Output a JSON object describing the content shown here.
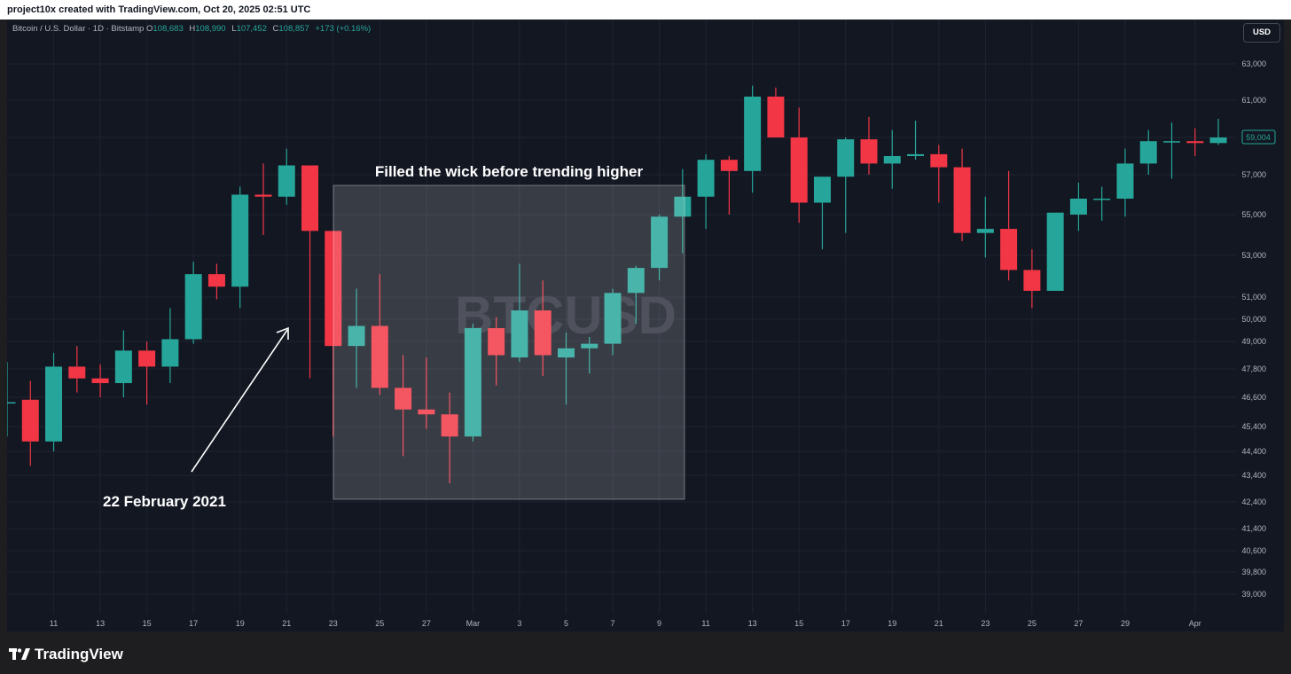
{
  "header": {
    "credit": "project10x created with TradingView.com, Oct 20, 2025 02:51 UTC"
  },
  "legend": {
    "symbol": "Bitcoin / U.S. Dollar · 1D · Bitstamp",
    "open_key": "O",
    "open": "108,683",
    "high_key": "H",
    "high": "108,990",
    "low_key": "L",
    "low": "107,452",
    "close_key": "C",
    "close": "108,857",
    "change": "+173 (+0.16%)"
  },
  "currency_button": "USD",
  "watermark": "BTCUSD",
  "annotations": {
    "box_label": "Filled the wick before trending higher",
    "arrow_label": "22 February 2021"
  },
  "price_label": "59,004",
  "footer": {
    "brand": "TradingView"
  },
  "colors": {
    "up": "#26a69a",
    "down": "#f23645",
    "background": "#131722",
    "grid": "#1f2330",
    "axis_text": "#b2b5be"
  },
  "chart_data": {
    "type": "candlestick",
    "title": "",
    "xlabel": "",
    "ylabel": "",
    "y_ticks": [
      "63,000",
      "61,000",
      "59,000",
      "57,000",
      "55,000",
      "53,000",
      "51,000",
      "50,000",
      "49,000",
      "47,800",
      "46,600",
      "45,400",
      "44,400",
      "43,400",
      "42,400",
      "41,400",
      "40,600",
      "39,800",
      "39,000"
    ],
    "y_tick_values": [
      63000,
      61000,
      59000,
      57000,
      55000,
      53000,
      51000,
      50000,
      49000,
      47800,
      46600,
      45400,
      44400,
      43400,
      42400,
      41400,
      40600,
      39800,
      39000
    ],
    "x_ticks": [
      "11",
      "13",
      "15",
      "17",
      "19",
      "21",
      "23",
      "25",
      "27",
      "Mar",
      "3",
      "5",
      "7",
      "9",
      "11",
      "13",
      "15",
      "17",
      "19",
      "21",
      "23",
      "25",
      "27",
      "29",
      "Apr"
    ],
    "candles": [
      {
        "date": "2021-02-09",
        "o": 46400,
        "h": 48100,
        "l": 45000,
        "c": 46400
      },
      {
        "date": "2021-02-10",
        "o": 46500,
        "h": 47300,
        "l": 43800,
        "c": 44800
      },
      {
        "date": "2021-02-11",
        "o": 44800,
        "h": 48500,
        "l": 44400,
        "c": 47900
      },
      {
        "date": "2021-02-12",
        "o": 47900,
        "h": 48800,
        "l": 46800,
        "c": 47400
      },
      {
        "date": "2021-02-13",
        "o": 47400,
        "h": 48000,
        "l": 46600,
        "c": 47200
      },
      {
        "date": "2021-02-14",
        "o": 47200,
        "h": 49500,
        "l": 46600,
        "c": 48600
      },
      {
        "date": "2021-02-15",
        "o": 48600,
        "h": 49000,
        "l": 46300,
        "c": 47900
      },
      {
        "date": "2021-02-16",
        "o": 47900,
        "h": 50500,
        "l": 47200,
        "c": 49100
      },
      {
        "date": "2021-02-17",
        "o": 49100,
        "h": 52700,
        "l": 48900,
        "c": 52100
      },
      {
        "date": "2021-02-18",
        "o": 52100,
        "h": 52600,
        "l": 50900,
        "c": 51500
      },
      {
        "date": "2021-02-19",
        "o": 51500,
        "h": 56400,
        "l": 50500,
        "c": 56000
      },
      {
        "date": "2021-02-20",
        "o": 56000,
        "h": 57600,
        "l": 54000,
        "c": 55900
      },
      {
        "date": "2021-02-21",
        "o": 55900,
        "h": 58400,
        "l": 55500,
        "c": 57500
      },
      {
        "date": "2021-02-22",
        "o": 57500,
        "h": 57500,
        "l": 47400,
        "c": 54200
      },
      {
        "date": "2021-02-23",
        "o": 54200,
        "h": 54200,
        "l": 45000,
        "c": 48800
      },
      {
        "date": "2021-02-24",
        "o": 48800,
        "h": 51400,
        "l": 47000,
        "c": 49700
      },
      {
        "date": "2021-02-25",
        "o": 49700,
        "h": 52100,
        "l": 46700,
        "c": 47000
      },
      {
        "date": "2021-02-26",
        "o": 47000,
        "h": 48400,
        "l": 44200,
        "c": 46100
      },
      {
        "date": "2021-02-27",
        "o": 46100,
        "h": 48300,
        "l": 45300,
        "c": 45900
      },
      {
        "date": "2021-02-28",
        "o": 45900,
        "h": 46800,
        "l": 43100,
        "c": 45000
      },
      {
        "date": "2021-03-01",
        "o": 45000,
        "h": 49800,
        "l": 44800,
        "c": 49600
      },
      {
        "date": "2021-03-02",
        "o": 49600,
        "h": 50100,
        "l": 47100,
        "c": 48400
      },
      {
        "date": "2021-03-03",
        "o": 48300,
        "h": 52600,
        "l": 48100,
        "c": 50400
      },
      {
        "date": "2021-03-04",
        "o": 50400,
        "h": 51800,
        "l": 47500,
        "c": 48400
      },
      {
        "date": "2021-03-05",
        "o": 48300,
        "h": 49400,
        "l": 46300,
        "c": 48700
      },
      {
        "date": "2021-03-06",
        "o": 48700,
        "h": 49200,
        "l": 47600,
        "c": 48900
      },
      {
        "date": "2021-03-07",
        "o": 48900,
        "h": 51400,
        "l": 48400,
        "c": 51200
      },
      {
        "date": "2021-03-08",
        "o": 51200,
        "h": 52500,
        "l": 49800,
        "c": 52400
      },
      {
        "date": "2021-03-09",
        "o": 52400,
        "h": 55000,
        "l": 51800,
        "c": 54900
      },
      {
        "date": "2021-03-10",
        "o": 54900,
        "h": 57300,
        "l": 53100,
        "c": 55900
      },
      {
        "date": "2021-03-11",
        "o": 55900,
        "h": 58100,
        "l": 54300,
        "c": 57800
      },
      {
        "date": "2021-03-12",
        "o": 57800,
        "h": 58000,
        "l": 55000,
        "c": 57200
      },
      {
        "date": "2021-03-13",
        "o": 57200,
        "h": 61800,
        "l": 56100,
        "c": 61200
      },
      {
        "date": "2021-03-14",
        "o": 61200,
        "h": 61700,
        "l": 59000,
        "c": 59000
      },
      {
        "date": "2021-03-15",
        "o": 59000,
        "h": 60600,
        "l": 54600,
        "c": 55600
      },
      {
        "date": "2021-03-16",
        "o": 55600,
        "h": 56900,
        "l": 53300,
        "c": 56900
      },
      {
        "date": "2021-03-17",
        "o": 56900,
        "h": 59000,
        "l": 54100,
        "c": 58900
      },
      {
        "date": "2021-03-18",
        "o": 58900,
        "h": 60100,
        "l": 57000,
        "c": 57600
      },
      {
        "date": "2021-03-19",
        "o": 57600,
        "h": 59400,
        "l": 56300,
        "c": 58000
      },
      {
        "date": "2021-03-20",
        "o": 58000,
        "h": 59900,
        "l": 57800,
        "c": 58100
      },
      {
        "date": "2021-03-21",
        "o": 58100,
        "h": 58600,
        "l": 55600,
        "c": 57400
      },
      {
        "date": "2021-03-22",
        "o": 57400,
        "h": 58400,
        "l": 53700,
        "c": 54100
      },
      {
        "date": "2021-03-23",
        "o": 54100,
        "h": 55900,
        "l": 52900,
        "c": 54300
      },
      {
        "date": "2021-03-24",
        "o": 54300,
        "h": 57200,
        "l": 51800,
        "c": 52300
      },
      {
        "date": "2021-03-25",
        "o": 52300,
        "h": 53300,
        "l": 50500,
        "c": 51300
      },
      {
        "date": "2021-03-26",
        "o": 51300,
        "h": 55100,
        "l": 51300,
        "c": 55100
      },
      {
        "date": "2021-03-27",
        "o": 55000,
        "h": 56600,
        "l": 54200,
        "c": 55800
      },
      {
        "date": "2021-03-28",
        "o": 55800,
        "h": 56400,
        "l": 54700,
        "c": 55800
      },
      {
        "date": "2021-03-29",
        "o": 55800,
        "h": 58400,
        "l": 54900,
        "c": 57600
      },
      {
        "date": "2021-03-30",
        "o": 57600,
        "h": 59400,
        "l": 57000,
        "c": 58800
      },
      {
        "date": "2021-03-31",
        "o": 58800,
        "h": 59800,
        "l": 56800,
        "c": 58800
      },
      {
        "date": "2021-04-01",
        "o": 58800,
        "h": 59500,
        "l": 58000,
        "c": 58700
      },
      {
        "date": "2021-04-02",
        "o": 58700,
        "h": 60000,
        "l": 58600,
        "c": 59000
      }
    ]
  }
}
